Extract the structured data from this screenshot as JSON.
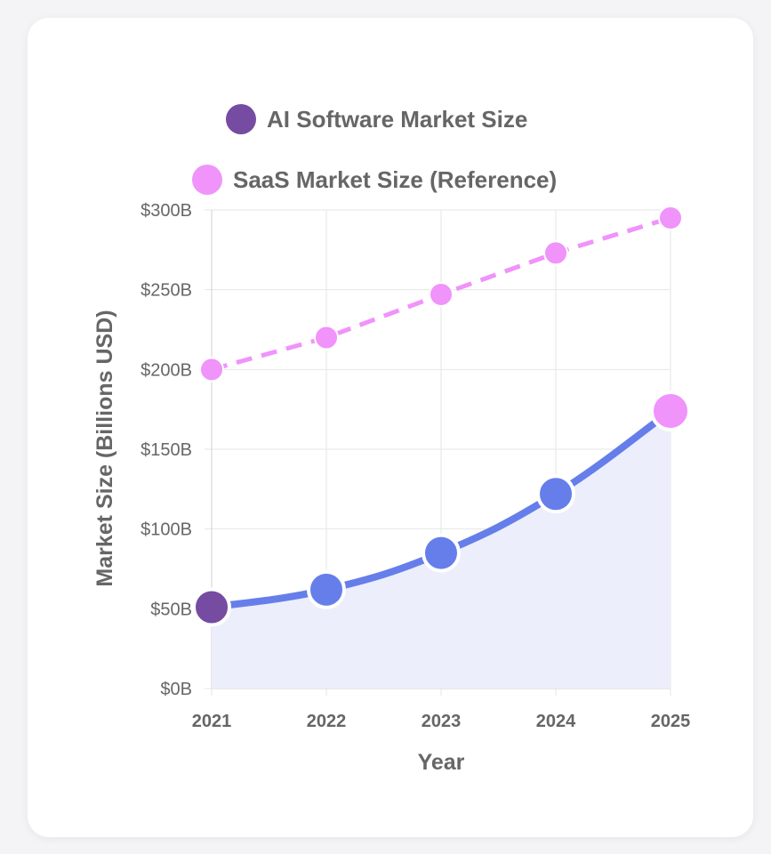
{
  "chart_data": {
    "type": "line",
    "categories": [
      "2021",
      "2022",
      "2023",
      "2024",
      "2025"
    ],
    "series": [
      {
        "name": "AI Software Market Size",
        "values": [
          51,
          62,
          85,
          122,
          174
        ],
        "color": "#667eea",
        "legend_color": "#764ba2",
        "first_point_color": "#764ba2",
        "last_point_color": "#f093fb",
        "fill": "#eceefb",
        "dashed": false
      },
      {
        "name": "SaaS Market Size (Reference)",
        "values": [
          200,
          220,
          247,
          273,
          295
        ],
        "color": "#f093fb",
        "legend_color": "#f093fb",
        "dashed": true
      }
    ],
    "xlabel": "Year",
    "ylabel": "Market Size (Billions USD)",
    "ylim": [
      0,
      300
    ],
    "yticks": [
      "$0B",
      "$50B",
      "$100B",
      "$150B",
      "$200B",
      "$250B",
      "$300B"
    ],
    "ytick_values": [
      0,
      50,
      100,
      150,
      200,
      250,
      300
    ],
    "grid": true,
    "legend_position": "top"
  }
}
